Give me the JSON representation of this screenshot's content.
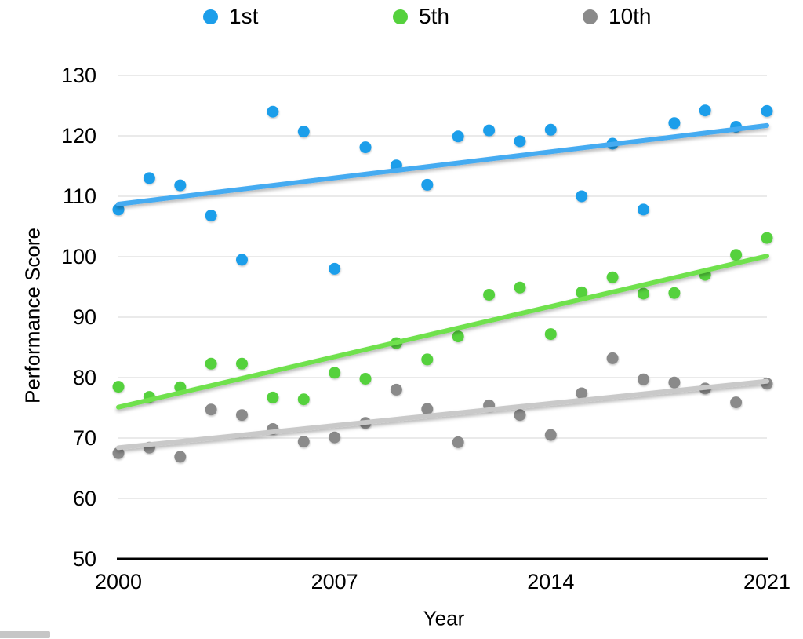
{
  "chart_data": {
    "type": "scatter",
    "title": "",
    "xlabel": "Year",
    "ylabel": "Performance Score",
    "xlim": [
      2000,
      2021
    ],
    "ylim": [
      50,
      130
    ],
    "xticks": [
      2000,
      2007,
      2014,
      2021
    ],
    "yticks": [
      50,
      60,
      70,
      80,
      90,
      100,
      110,
      120,
      130
    ],
    "grid": true,
    "legend_position": "top",
    "x": [
      2000,
      2001,
      2002,
      2003,
      2004,
      2005,
      2006,
      2007,
      2008,
      2009,
      2010,
      2011,
      2012,
      2013,
      2014,
      2015,
      2016,
      2017,
      2018,
      2019,
      2020,
      2021
    ],
    "series": [
      {
        "name": "1st",
        "dot_color": "#1C9EEA",
        "line_color": "#45ABF1",
        "values": [
          107.8,
          113.0,
          111.8,
          106.8,
          99.5,
          124.0,
          120.7,
          98.0,
          118.1,
          115.1,
          111.9,
          119.9,
          120.9,
          119.1,
          121.0,
          110.0,
          118.7,
          107.8,
          122.1,
          124.2,
          121.5,
          124.1
        ],
        "trendline": {
          "start_year": 2000,
          "start_value": 108.7,
          "end_year": 2021,
          "end_value": 121.7
        }
      },
      {
        "name": "5th",
        "dot_color": "#55D13D",
        "line_color": "#6FE14E",
        "values": [
          78.5,
          76.8,
          78.4,
          82.3,
          82.3,
          76.7,
          76.4,
          80.8,
          79.8,
          85.7,
          83.0,
          86.8,
          93.7,
          94.9,
          87.2,
          94.1,
          96.6,
          93.9,
          94.0,
          97.0,
          100.3,
          103.1
        ],
        "trendline": {
          "start_year": 2000,
          "start_value": 75.1,
          "end_year": 2021,
          "end_value": 100.1
        }
      },
      {
        "name": "10th",
        "dot_color": "#8A8A8A",
        "line_color": "#C9C9C9",
        "values": [
          67.5,
          68.4,
          66.9,
          74.7,
          73.8,
          71.5,
          69.4,
          70.1,
          72.5,
          78.0,
          74.8,
          69.3,
          75.4,
          73.8,
          70.5,
          77.4,
          83.2,
          79.7,
          79.2,
          78.2,
          75.9,
          79.0
        ],
        "trendline": {
          "start_year": 2000,
          "start_value": 68.4,
          "end_year": 2021,
          "end_value": 79.4
        }
      }
    ],
    "colors": {
      "gridline": "#d6d6d6",
      "axis_line": "#000000",
      "text": "#000000"
    }
  }
}
